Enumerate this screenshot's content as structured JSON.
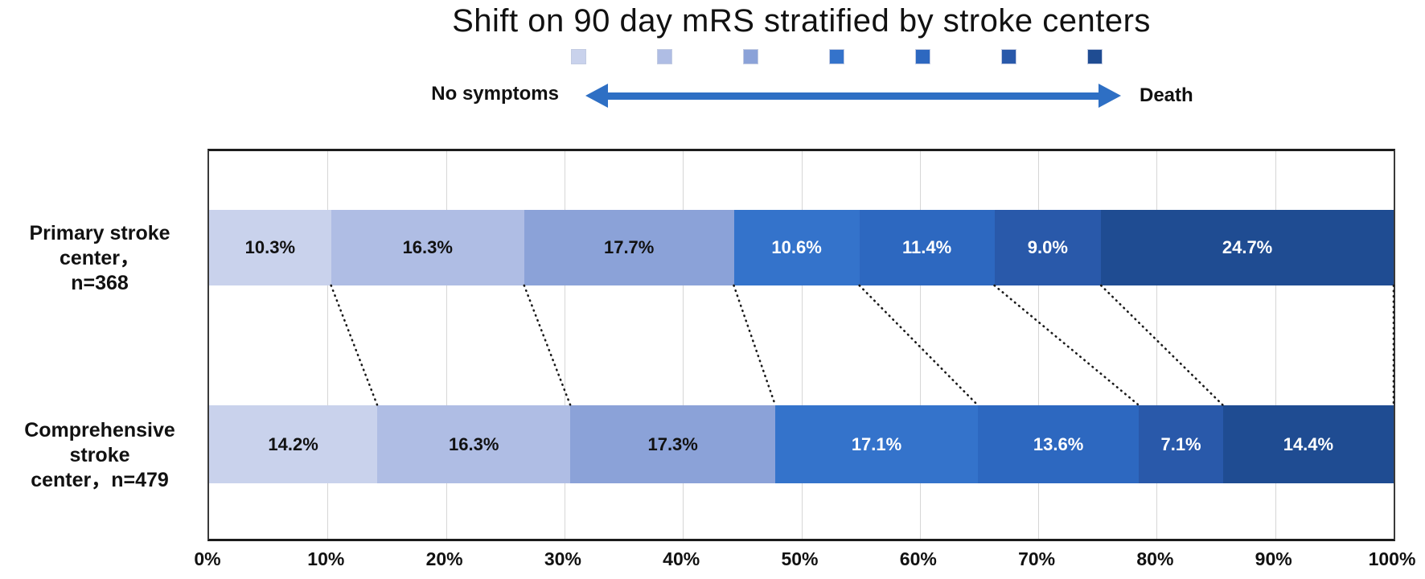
{
  "title": "Shift on 90 day mRS stratified by stroke centers",
  "scale_arrow": {
    "left_label": "No symptoms",
    "right_label": "Death"
  },
  "colors": {
    "arrow": "#2e6fc4",
    "grid": "#d6d6d6",
    "plot_border": "#1c1c1c",
    "connector": "#1a1a1a",
    "segment_palette": [
      "#c9d2ec",
      "#afbde4",
      "#8ba2d8",
      "#3473cb",
      "#2d68c0",
      "#2959aa",
      "#1f4c92"
    ],
    "label_on_light": "#111111",
    "label_on_dark": "#ffffff"
  },
  "chart_data": {
    "type": "bar",
    "subtype": "horizontal-stacked-100pct",
    "title": "Shift on 90 day mRS stratified by stroke centers",
    "categories": [
      "Primary stroke center，n=368",
      "Comprehensive stroke center，n=479"
    ],
    "category_lines": [
      [
        "Primary stroke center，",
        "n=368"
      ],
      [
        "Comprehensive stroke",
        "center，n=479"
      ]
    ],
    "series": [
      {
        "name": "mrs-0",
        "color": "#c9d2ec",
        "text_color": "#111111",
        "values": [
          10.3,
          14.2
        ]
      },
      {
        "name": "mrs-1",
        "color": "#afbde4",
        "text_color": "#111111",
        "values": [
          16.3,
          16.3
        ]
      },
      {
        "name": "mrs-2",
        "color": "#8ba2d8",
        "text_color": "#111111",
        "values": [
          17.7,
          17.3
        ]
      },
      {
        "name": "mrs-3",
        "color": "#3473cb",
        "text_color": "#ffffff",
        "values": [
          10.6,
          17.1
        ]
      },
      {
        "name": "mrs-4",
        "color": "#2d68c0",
        "text_color": "#ffffff",
        "values": [
          11.4,
          13.6
        ]
      },
      {
        "name": "mrs-5",
        "color": "#2959aa",
        "text_color": "#ffffff",
        "values": [
          9.0,
          7.1
        ]
      },
      {
        "name": "mrs-6",
        "color": "#1f4c92",
        "text_color": "#ffffff",
        "values": [
          24.7,
          14.4
        ]
      }
    ],
    "value_suffix": "%",
    "value_decimals": 1,
    "x_ticks": [
      "0%",
      "10%",
      "20%",
      "30%",
      "40%",
      "50%",
      "60%",
      "70%",
      "80%",
      "90%",
      "100%"
    ],
    "xlim": [
      0,
      100
    ],
    "grid": true,
    "legend": {
      "position": "top-center",
      "swatch_colors": [
        "#c9d2ec",
        "#afbde4",
        "#8ba2d8",
        "#3473cb",
        "#2d68c0",
        "#2959aa",
        "#1f4c92"
      ]
    },
    "annotations": {
      "connectors": "dotted lines linking cumulative segment boundaries of the two bars, including the 100% right edge"
    }
  }
}
